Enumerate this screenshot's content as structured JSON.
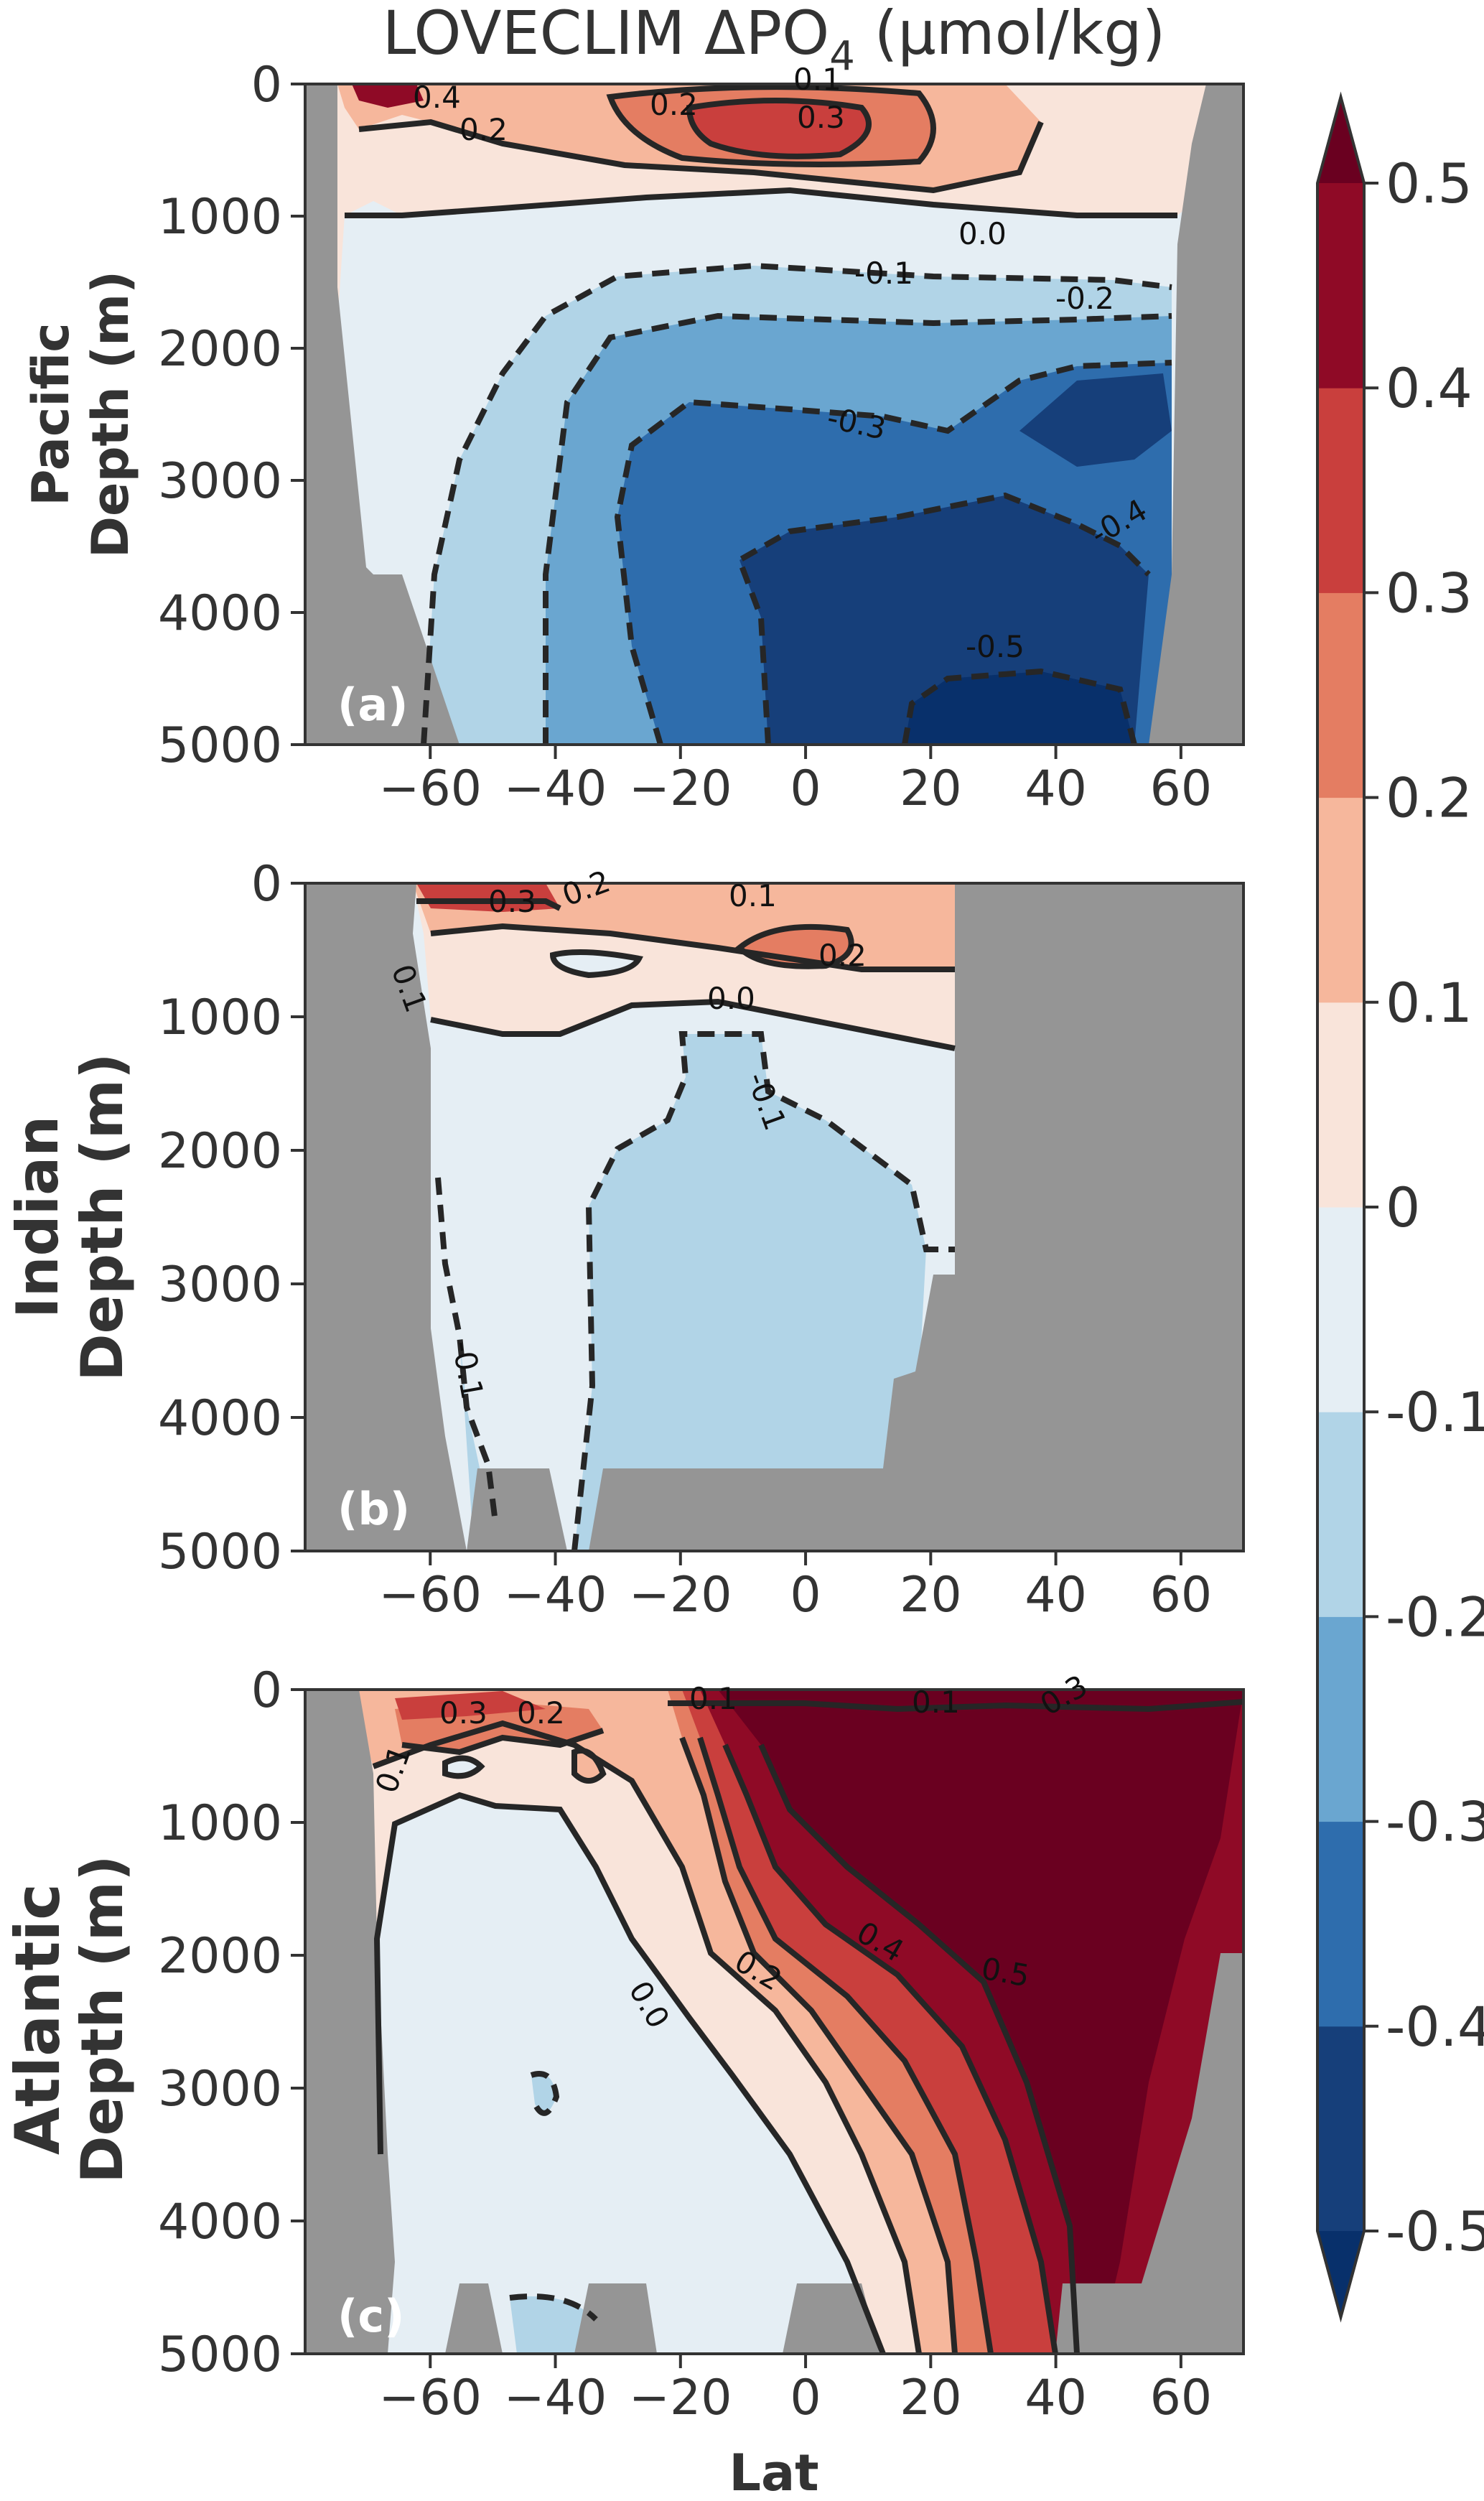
{
  "title_main": "LOVECLIM ΔPO",
  "title_sub": "4",
  "title_unit": " (μmol/kg)",
  "xlabel": "Lat",
  "colors": {
    "land": "#959595",
    "axis": "#333333",
    "contour": "#262626"
  },
  "colorbar": {
    "levels": [
      -0.5,
      -0.4,
      -0.3,
      -0.2,
      -0.1,
      0,
      0.1,
      0.2,
      0.3,
      0.4,
      0.5
    ],
    "tick_labels": [
      "-0.5",
      "-0.4",
      "-0.3",
      "-0.2",
      "-0.1",
      "0",
      "0.1",
      "0.2",
      "0.3",
      "0.4",
      "0.5"
    ],
    "colors": [
      "#163f7a",
      "#2e6dad",
      "#6aa6d0",
      "#b1d4e7",
      "#e5eef4",
      "#f9e4da",
      "#f6b79c",
      "#e47d62",
      "#c93f3d",
      "#8f0a26"
    ],
    "extend_low_color": "#08306b",
    "extend_high_color": "#6a0020"
  },
  "chart_data": [
    {
      "type": "heatmap",
      "panel_label": "(a)",
      "ylabel_line1": "Pacific",
      "ylabel_line2": "Depth (m)",
      "xlim": [
        -80,
        70
      ],
      "ylim": [
        5000,
        0
      ],
      "xticks": [
        -60,
        -40,
        -20,
        0,
        20,
        40,
        60
      ],
      "xtick_labels": [
        "−60",
        "−40",
        "−20",
        "0",
        "20",
        "40",
        "60"
      ],
      "yticks": [
        0,
        1000,
        2000,
        3000,
        4000,
        5000
      ],
      "ytick_labels": [
        "0",
        "1000",
        "2000",
        "3000",
        "4000",
        "5000"
      ],
      "contour_labels": [
        "0.4",
        "0.2",
        "0.2",
        "0.1",
        "0.3",
        "0.0",
        "-0.1",
        "-0.2",
        "-0.3",
        "-0.4",
        "-0.5"
      ]
    },
    {
      "type": "heatmap",
      "panel_label": "(b)",
      "ylabel_line1": "Indian",
      "ylabel_line2": "Depth (m)",
      "xlim": [
        -80,
        70
      ],
      "ylim": [
        5000,
        0
      ],
      "xticks": [
        -60,
        -40,
        -20,
        0,
        20,
        40,
        60
      ],
      "xtick_labels": [
        "−60",
        "−40",
        "−20",
        "0",
        "20",
        "40",
        "60"
      ],
      "yticks": [
        0,
        1000,
        2000,
        3000,
        4000,
        5000
      ],
      "ytick_labels": [
        "0",
        "1000",
        "2000",
        "3000",
        "4000",
        "5000"
      ],
      "contour_labels": [
        "0.3",
        "0.2",
        "0.1",
        "0.2",
        "0.1",
        "0.0",
        "-0.1",
        "-0.1"
      ]
    },
    {
      "type": "heatmap",
      "panel_label": "(c)",
      "ylabel_line1": "Atlantic",
      "ylabel_line2": "Depth (m)",
      "xlim": [
        -80,
        70
      ],
      "ylim": [
        5000,
        0
      ],
      "xticks": [
        -60,
        -40,
        -20,
        0,
        20,
        40,
        60
      ],
      "xtick_labels": [
        "−60",
        "−40",
        "−20",
        "0",
        "20",
        "40",
        "60"
      ],
      "yticks": [
        0,
        1000,
        2000,
        3000,
        4000,
        5000
      ],
      "ytick_labels": [
        "0",
        "1000",
        "2000",
        "3000",
        "4000",
        "5000"
      ],
      "contour_labels": [
        "0.3",
        "0.2",
        "0.1",
        "0.1",
        "0.1",
        "0.3",
        "0.0",
        "0.2",
        "0.4",
        "0.5"
      ]
    }
  ]
}
